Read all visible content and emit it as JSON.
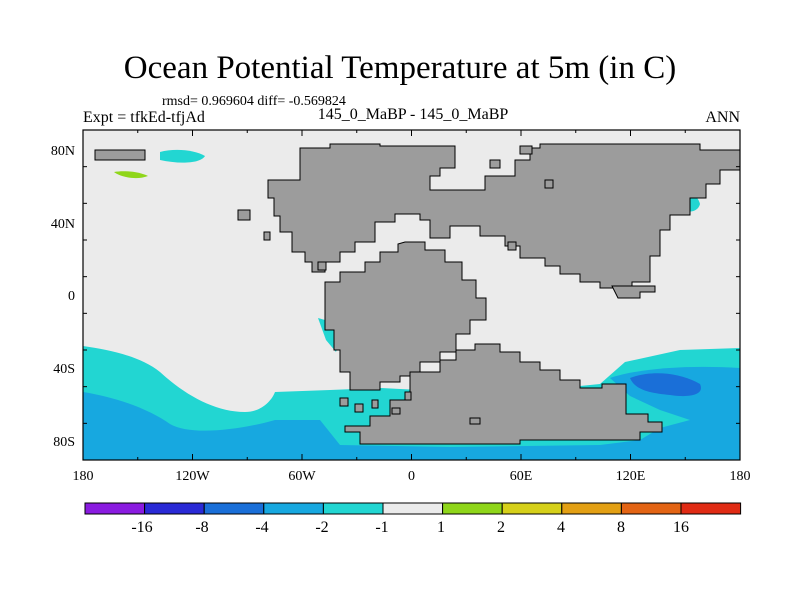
{
  "title": "Ocean Potential Temperature at 5m (in C)",
  "stats": "rmsd= 0.969604 diff= -0.569824",
  "left_string": "Expt = tfkEd-tfjAd",
  "center_string": "145_0_MaBP - 145_0_MaBP",
  "right_string": "ANN",
  "map": {
    "x_ticks": [
      "180",
      "120W",
      "60W",
      "0",
      "60E",
      "120E",
      "180"
    ],
    "y_ticks": [
      "80N",
      "40N",
      "0",
      "40S",
      "80S"
    ],
    "land_color": "#9c9c9c",
    "neutral_color": "#ebebeb"
  },
  "colorbar": {
    "levels": [
      "-16",
      "-8",
      "-4",
      "-2",
      "-1",
      "1",
      "2",
      "4",
      "8",
      "16"
    ],
    "colors": [
      "#8a1be0",
      "#2a2ad6",
      "#1a6fd8",
      "#17a8e0",
      "#22d6d2",
      "#ebebeb",
      "#8fd61a",
      "#d6d01a",
      "#e3a014",
      "#e36414",
      "#e02b14"
    ]
  }
}
